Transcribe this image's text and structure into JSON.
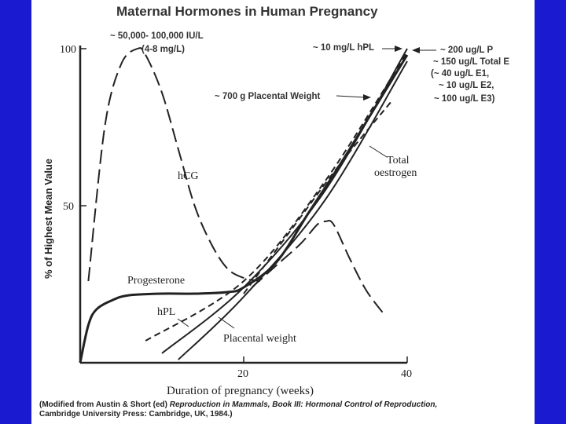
{
  "chart_data": {
    "type": "line",
    "title": "Maternal Hormones in Human Pregnancy",
    "xlabel": "Duration of pregnancy (weeks)",
    "ylabel": "% of Highest Mean Value",
    "xlim": [
      0,
      40
    ],
    "ylim": [
      0,
      100
    ],
    "x_ticks": [
      "20",
      "40"
    ],
    "y_ticks": [
      "100",
      "50"
    ],
    "grid": false,
    "legend": "none",
    "series": [
      {
        "name": "hCG",
        "style": "long-dash",
        "x": [
          1,
          3,
          5,
          7,
          8,
          10,
          12,
          14,
          16,
          18,
          20,
          22
        ],
        "y": [
          26,
          75,
          95,
          100,
          98,
          86,
          68,
          50,
          38,
          30,
          27,
          26
        ]
      },
      {
        "name": "Progesterone",
        "style": "solid",
        "x": [
          0,
          1,
          2,
          4,
          6,
          10,
          14,
          18,
          20,
          24,
          28,
          32,
          36,
          40
        ],
        "y": [
          0,
          12,
          17,
          20,
          21.5,
          22,
          22,
          22.5,
          24,
          32,
          48,
          64,
          81,
          98
        ]
      },
      {
        "name": "Total oestrogen",
        "style": "solid",
        "x": [
          10,
          20,
          30,
          40
        ],
        "y": [
          3,
          24,
          55,
          100
        ]
      },
      {
        "name": "hPL",
        "style": "dash",
        "x": [
          8,
          20,
          30,
          40
        ],
        "y": [
          7,
          26,
          58,
          99
        ]
      },
      {
        "name": "Placental weight",
        "style": "solid",
        "x": [
          12,
          20,
          30,
          40
        ],
        "y": [
          1,
          21,
          52,
          96
        ]
      },
      {
        "name": "",
        "style": "long-dash",
        "x": [
          21,
          24,
          27,
          29,
          30,
          31,
          33,
          35,
          37
        ],
        "y": [
          24,
          31,
          38,
          44,
          45,
          44,
          33,
          23,
          16
        ]
      },
      {
        "name": "",
        "style": "dash",
        "x": [
          20,
          26,
          32,
          38
        ],
        "y": [
          22,
          43,
          64,
          83
        ]
      }
    ],
    "curve_labels": [
      "hCG",
      "Progesterone",
      "hPL",
      "Total oestrogen",
      "Placental weight"
    ],
    "annotations": [
      "~ 50,000- 100,000 IU/L",
      "(4-8 mg/L)",
      "~ 10 mg/L hPL",
      "~ 700 g Placental Weight",
      "~ 200 ug/L P",
      "~ 150 ug/L Total E",
      "(~ 40 ug/L E1,",
      "~ 10 ug/L E2,",
      "~ 100 ug/L E3)"
    ]
  },
  "caption": {
    "before_italic": "(Modified from Austin & Short (ed) ",
    "italic": "Reproduction in Mammals, Book III: Hormonal Control of Reproduction,",
    "after_italic": "Cambridge University Press: Cambridge, UK, 1984.)"
  },
  "colors": {
    "background": "#1a1ad0",
    "panel": "#ffffff",
    "ink": "#222222"
  }
}
